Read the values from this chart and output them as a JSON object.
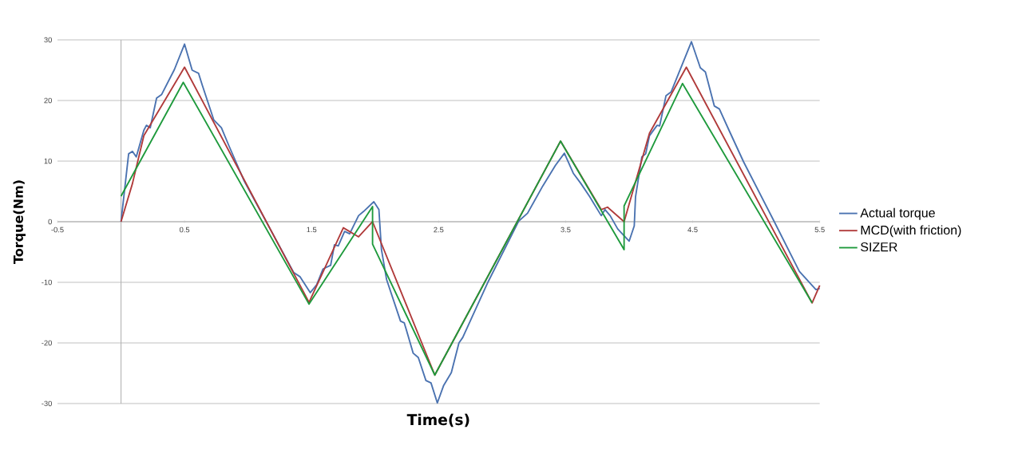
{
  "chart_data": {
    "type": "line",
    "xlabel": "Time(s)",
    "ylabel": "Torque(Nm)",
    "xlim": [
      -0.5,
      5.5
    ],
    "xticks": [
      -0.5,
      0.5,
      1.5,
      2.5,
      3.5,
      4.5,
      5.5
    ],
    "ylim": [
      -30,
      30
    ],
    "yticks": [
      -30,
      -20,
      -10,
      0,
      10,
      20,
      30
    ],
    "grid": "y",
    "legend": "right",
    "series": [
      {
        "name": "Actual torque",
        "color": "#4a72b0",
        "x": [
          0,
          0.06,
          0.09,
          0.12,
          0.18,
          0.2,
          0.23,
          0.28,
          0.32,
          0.42,
          0.5,
          0.56,
          0.61,
          0.64,
          0.73,
          0.79,
          0.85,
          0.97,
          1.36,
          1.41,
          1.49,
          1.54,
          1.59,
          1.65,
          1.68,
          1.71,
          1.76,
          1.8,
          1.87,
          1.91,
          1.99,
          2.03,
          2.05,
          2.09,
          2.2,
          2.23,
          2.3,
          2.34,
          2.4,
          2.44,
          2.49,
          2.54,
          2.6,
          2.66,
          2.69,
          2.89,
          3.13,
          3.2,
          3.32,
          3.42,
          3.49,
          3.56,
          3.62,
          3.69,
          3.78,
          3.81,
          3.85,
          3.91,
          4.0,
          4.04,
          4.05,
          4.1,
          4.13,
          4.16,
          4.22,
          4.24,
          4.29,
          4.33,
          4.49,
          4.56,
          4.6,
          4.67,
          4.71,
          4.79,
          4.9,
          5.14,
          5.34,
          5.47,
          5.5
        ],
        "values": [
          0,
          11.2,
          11.6,
          10.7,
          15.1,
          15.9,
          15.5,
          20.4,
          21,
          25.1,
          29.3,
          25,
          24.5,
          22.5,
          16.8,
          15.5,
          12.5,
          6.7,
          -8.4,
          -9.1,
          -11.7,
          -10.4,
          -7.8,
          -7.2,
          -3.8,
          -4,
          -1.6,
          -2,
          1,
          1.7,
          3.3,
          2,
          -4.6,
          -9.5,
          -16.4,
          -16.7,
          -21.7,
          -22.4,
          -26.2,
          -26.6,
          -29.9,
          -27,
          -24.9,
          -20,
          -19.1,
          -9.9,
          0.1,
          1.4,
          5.9,
          9.3,
          11.3,
          8,
          6.3,
          4.1,
          1,
          2,
          1,
          -1.2,
          -3.2,
          -0.7,
          4.1,
          10.7,
          11.2,
          14.2,
          15.9,
          15.8,
          20.8,
          21.4,
          29.7,
          25.4,
          24.7,
          19.1,
          18.6,
          14.9,
          9.9,
          0.1,
          -8.2,
          -11.2,
          -11
        ]
      },
      {
        "name": "MCD(with friction)",
        "color": "#b03a3a",
        "x": [
          0,
          0.09,
          0.18,
          0.5,
          1.48,
          1.75,
          1.87,
          1.98,
          2.47,
          3.46,
          3.78,
          3.83,
          3.96,
          4.16,
          4.45,
          5.44,
          5.5
        ],
        "values": [
          0,
          6.3,
          14.2,
          25.5,
          -13.3,
          -1,
          -2.5,
          0,
          -25.3,
          13.3,
          2,
          2.4,
          0,
          14.6,
          25.5,
          -13.4,
          -10.5
        ]
      },
      {
        "name": "SIZER",
        "color": "#1e9a3c",
        "x": [
          0,
          0.49,
          1.48,
          1.98,
          1.98,
          2.47,
          3.46,
          3.96,
          3.96,
          4.42,
          5.44
        ],
        "values": [
          4.2,
          23,
          -13.6,
          2.5,
          -3.7,
          -25.3,
          13.3,
          -4.6,
          2.6,
          22.8,
          -13.4
        ]
      }
    ]
  }
}
